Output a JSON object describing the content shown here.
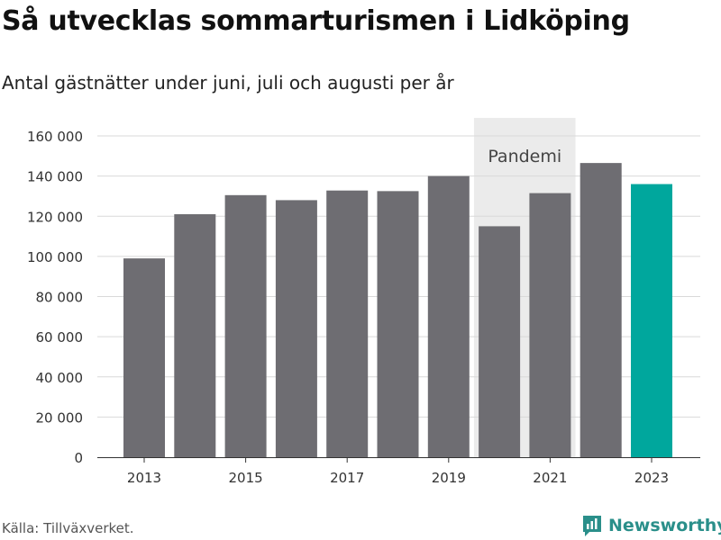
{
  "header": {
    "title": "Så utvecklas sommarturismen i Lidköping",
    "subtitle": "Antal gästnätter under juni, juli och augusti per år"
  },
  "footer": {
    "source": "Källa: Tillväxverket.",
    "brand": "Newsworthy"
  },
  "colors": {
    "bar": "#6e6d72",
    "highlight": "#00a79d",
    "band": "#ebebeb",
    "grid": "#d9d9d9",
    "brand": "#2a8f8a"
  },
  "chart_data": {
    "type": "bar",
    "categories": [
      "2013",
      "2014",
      "2015",
      "2016",
      "2017",
      "2018",
      "2019",
      "2020",
      "2021",
      "2022",
      "2023"
    ],
    "values": [
      99000,
      121000,
      130500,
      128000,
      132800,
      132500,
      140000,
      115000,
      131500,
      146500,
      136000
    ],
    "highlight_category": "2023",
    "x_tick_labels": [
      "2013",
      "2015",
      "2017",
      "2019",
      "2021",
      "2023"
    ],
    "y_ticks": [
      0,
      20000,
      40000,
      60000,
      80000,
      100000,
      120000,
      140000,
      160000
    ],
    "y_tick_labels": [
      "0",
      "20 000",
      "40 000",
      "60 000",
      "80 000",
      "100 000",
      "120 000",
      "140 000",
      "160 000"
    ],
    "ylim": [
      0,
      160000
    ],
    "grid": true,
    "annotation": {
      "label": "Pandemi",
      "from_category": "2020",
      "to_category": "2021"
    }
  }
}
